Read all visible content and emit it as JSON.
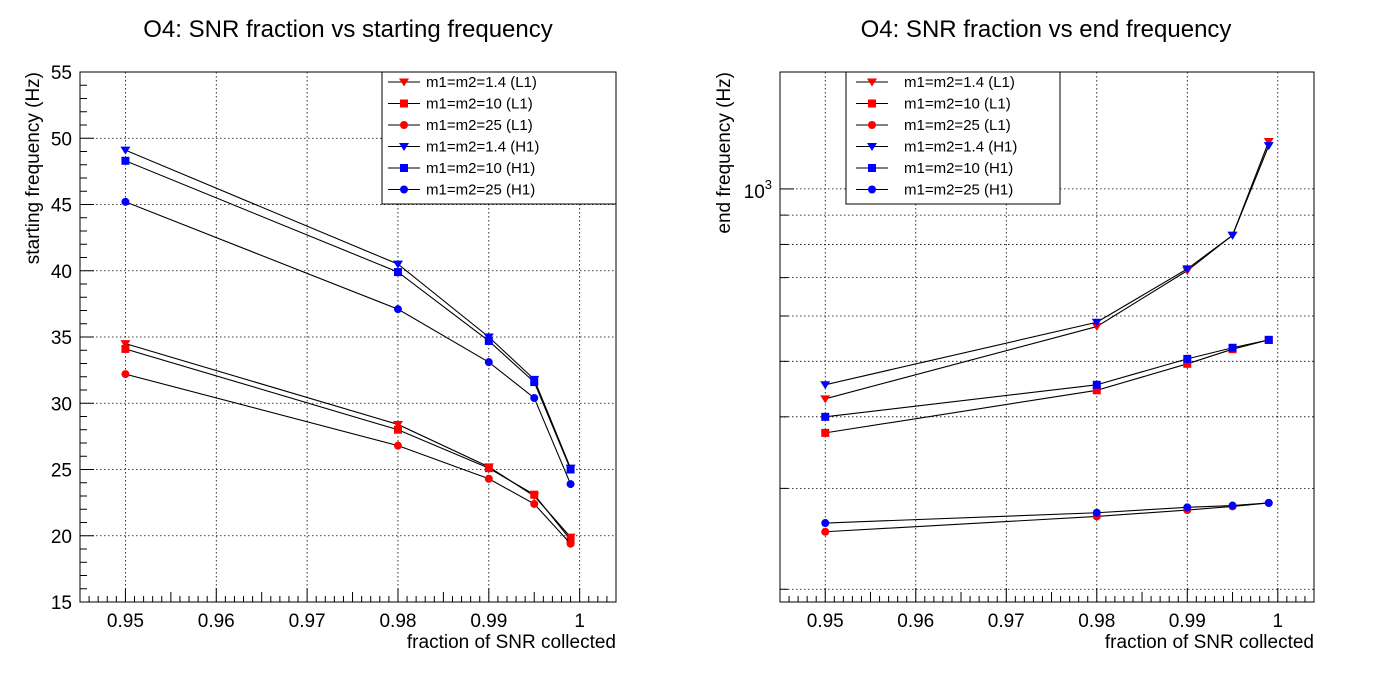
{
  "chart_data": [
    {
      "type": "line",
      "title": "O4: SNR fraction vs starting frequency",
      "xlabel": "fraction of SNR collected",
      "ylabel": "starting frequency (Hz)",
      "xlim": [
        0.945,
        1.004
      ],
      "ylim": [
        15,
        55
      ],
      "yscale": "linear",
      "grid": true,
      "legend_position": "top-right",
      "xticks": [
        0.95,
        0.96,
        0.97,
        0.98,
        0.99,
        1
      ],
      "xtick_labels": [
        "0.95",
        "0.96",
        "0.97",
        "0.98",
        "0.99",
        "1"
      ],
      "yticks": [
        15,
        20,
        25,
        30,
        35,
        40,
        45,
        50,
        55
      ],
      "ytick_labels": [
        "15",
        "20",
        "25",
        "30",
        "35",
        "40",
        "45",
        "50",
        "55"
      ],
      "series": [
        {
          "name": "m1=m2=1.4 (L1)",
          "color": "#ff0000",
          "marker": "triangle-down",
          "x": [
            0.95,
            0.98,
            0.99,
            0.995,
            0.999
          ],
          "y": [
            34.5,
            28.4,
            25.2,
            23.0,
            19.9
          ]
        },
        {
          "name": "m1=m2=10 (L1)",
          "color": "#ff0000",
          "marker": "square",
          "x": [
            0.95,
            0.98,
            0.99,
            0.995,
            0.999
          ],
          "y": [
            34.1,
            28.0,
            25.1,
            23.1,
            19.7
          ]
        },
        {
          "name": "m1=m2=25 (L1)",
          "color": "#ff0000",
          "marker": "circle",
          "x": [
            0.95,
            0.98,
            0.99,
            0.995,
            0.999
          ],
          "y": [
            32.2,
            26.8,
            24.3,
            22.4,
            19.4
          ]
        },
        {
          "name": "m1=m2=1.4 (H1)",
          "color": "#0000ff",
          "marker": "triangle-down",
          "x": [
            0.95,
            0.98,
            0.99,
            0.995,
            0.999
          ],
          "y": [
            49.1,
            40.5,
            35.0,
            31.8,
            25.1
          ]
        },
        {
          "name": "m1=m2=10 (H1)",
          "color": "#0000ff",
          "marker": "square",
          "x": [
            0.95,
            0.98,
            0.99,
            0.995,
            0.999
          ],
          "y": [
            48.3,
            39.9,
            34.7,
            31.6,
            25.0
          ]
        },
        {
          "name": "m1=m2=25 (H1)",
          "color": "#0000ff",
          "marker": "circle",
          "x": [
            0.95,
            0.98,
            0.99,
            0.995,
            0.999
          ],
          "y": [
            45.2,
            37.1,
            33.1,
            30.4,
            23.9
          ]
        }
      ]
    },
    {
      "type": "line",
      "title": "O4: SNR fraction vs end frequency",
      "xlabel": "fraction of SNR collected",
      "ylabel": "end frequency (Hz)",
      "xlim": [
        0.945,
        1.004
      ],
      "ylim": [
        190,
        1600
      ],
      "yscale": "log",
      "grid": true,
      "legend_position": "top-left",
      "xticks": [
        0.95,
        0.96,
        0.97,
        0.98,
        0.99,
        1
      ],
      "xtick_labels": [
        "0.95",
        "0.96",
        "0.97",
        "0.98",
        "0.99",
        "1"
      ],
      "yticks": [
        1000
      ],
      "ytick_labels": [
        "10"
      ],
      "ytick_exponents": [
        "3"
      ],
      "series": [
        {
          "name": "m1=m2=1.4 (L1)",
          "color": "#ff0000",
          "marker": "triangle-down",
          "x": [
            0.95,
            0.98,
            0.99,
            0.995,
            0.999
          ],
          "y": [
            430,
            575,
            720,
            830,
            1210
          ]
        },
        {
          "name": "m1=m2=10 (L1)",
          "color": "#ff0000",
          "marker": "square",
          "x": [
            0.95,
            0.98,
            0.99,
            0.995,
            0.999
          ],
          "y": [
            375,
            445,
            495,
            525,
            545
          ]
        },
        {
          "name": "m1=m2=25 (L1)",
          "color": "#ff0000",
          "marker": "circle",
          "x": [
            0.95,
            0.98,
            0.99,
            0.995,
            0.999
          ],
          "y": [
            252,
            268,
            275,
            279,
            283
          ]
        },
        {
          "name": "m1=m2=1.4 (H1)",
          "color": "#0000ff",
          "marker": "triangle-down",
          "x": [
            0.95,
            0.98,
            0.99,
            0.995,
            0.999
          ],
          "y": [
            455,
            585,
            725,
            830,
            1190
          ]
        },
        {
          "name": "m1=m2=10 (H1)",
          "color": "#0000ff",
          "marker": "square",
          "x": [
            0.95,
            0.98,
            0.99,
            0.995,
            0.999
          ],
          "y": [
            400,
            455,
            505,
            528,
            545
          ]
        },
        {
          "name": "m1=m2=25 (H1)",
          "color": "#0000ff",
          "marker": "circle",
          "x": [
            0.95,
            0.98,
            0.99,
            0.995,
            0.999
          ],
          "y": [
            261,
            272,
            278,
            280,
            283
          ]
        }
      ]
    }
  ]
}
